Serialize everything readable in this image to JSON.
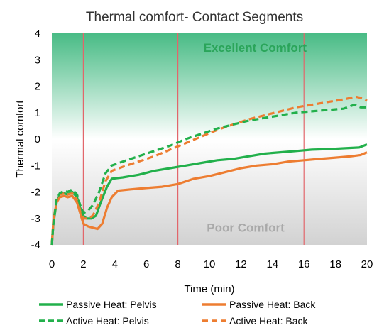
{
  "chart_data": {
    "type": "line",
    "title": "Thermal comfort- Contact Segments",
    "xlabel": "Time (min)",
    "ylabel": "Thermal comfort",
    "xlim": [
      0,
      20
    ],
    "ylim": [
      -4,
      4
    ],
    "x_ticks": [
      0,
      2,
      4,
      6,
      8,
      10,
      12,
      14,
      16,
      18,
      20
    ],
    "y_ticks": [
      -4,
      -3,
      -2,
      -1,
      0,
      1,
      2,
      3,
      4
    ],
    "vertical_reference_lines": [
      2,
      8,
      16
    ],
    "zones": {
      "excellent": {
        "label": "Excellent Comfort",
        "color": "#4fc08d"
      },
      "poor": {
        "label": "Poor Comfort",
        "color": "#cfcfcf"
      }
    },
    "legend_position": "bottom",
    "series": [
      {
        "name": "Passive Heat: Pelvis",
        "color": "#22b04b",
        "dash": "solid",
        "points": [
          [
            0,
            -4
          ],
          [
            0.1,
            -3.2
          ],
          [
            0.3,
            -2.4
          ],
          [
            0.5,
            -2.1
          ],
          [
            0.8,
            -2.05
          ],
          [
            1.0,
            -2.1
          ],
          [
            1.3,
            -2.0
          ],
          [
            1.6,
            -2.2
          ],
          [
            1.8,
            -2.6
          ],
          [
            2.0,
            -2.9
          ],
          [
            2.2,
            -3.0
          ],
          [
            2.5,
            -3.0
          ],
          [
            2.8,
            -2.9
          ],
          [
            3.1,
            -2.4
          ],
          [
            3.5,
            -1.8
          ],
          [
            3.8,
            -1.5
          ],
          [
            4.5,
            -1.45
          ],
          [
            5.5,
            -1.35
          ],
          [
            6.5,
            -1.2
          ],
          [
            7.5,
            -1.1
          ],
          [
            8.5,
            -1.0
          ],
          [
            9.5,
            -0.9
          ],
          [
            10.5,
            -0.8
          ],
          [
            11.5,
            -0.75
          ],
          [
            12.5,
            -0.65
          ],
          [
            13.5,
            -0.55
          ],
          [
            14.5,
            -0.5
          ],
          [
            15.5,
            -0.45
          ],
          [
            16.5,
            -0.4
          ],
          [
            17.5,
            -0.38
          ],
          [
            18.5,
            -0.35
          ],
          [
            19.5,
            -0.32
          ],
          [
            20,
            -0.2
          ]
        ]
      },
      {
        "name": "Passive Heat: Back",
        "color": "#ed7d31",
        "dash": "solid",
        "points": [
          [
            0,
            -4
          ],
          [
            0.1,
            -3.1
          ],
          [
            0.3,
            -2.4
          ],
          [
            0.5,
            -2.2
          ],
          [
            0.8,
            -2.15
          ],
          [
            1.0,
            -2.2
          ],
          [
            1.3,
            -2.15
          ],
          [
            1.6,
            -2.4
          ],
          [
            1.8,
            -2.8
          ],
          [
            2.0,
            -3.2
          ],
          [
            2.3,
            -3.3
          ],
          [
            2.6,
            -3.35
          ],
          [
            2.9,
            -3.4
          ],
          [
            3.2,
            -3.2
          ],
          [
            3.5,
            -2.6
          ],
          [
            3.8,
            -2.2
          ],
          [
            4.2,
            -1.95
          ],
          [
            5.0,
            -1.9
          ],
          [
            6.0,
            -1.85
          ],
          [
            7.0,
            -1.8
          ],
          [
            8.0,
            -1.7
          ],
          [
            9.0,
            -1.5
          ],
          [
            10.0,
            -1.4
          ],
          [
            11.0,
            -1.25
          ],
          [
            12.0,
            -1.1
          ],
          [
            13.0,
            -1.0
          ],
          [
            14.0,
            -0.95
          ],
          [
            15.0,
            -0.85
          ],
          [
            16.0,
            -0.8
          ],
          [
            17.0,
            -0.75
          ],
          [
            18.0,
            -0.7
          ],
          [
            19.0,
            -0.65
          ],
          [
            19.6,
            -0.6
          ],
          [
            20,
            -0.5
          ]
        ]
      },
      {
        "name": "Active Heat: Pelvis",
        "color": "#22b04b",
        "dash": "dashed",
        "points": [
          [
            0,
            -4
          ],
          [
            0.1,
            -3.2
          ],
          [
            0.3,
            -2.3
          ],
          [
            0.5,
            -2.05
          ],
          [
            0.8,
            -1.95
          ],
          [
            1.0,
            -2.0
          ],
          [
            1.3,
            -1.9
          ],
          [
            1.6,
            -2.1
          ],
          [
            1.8,
            -2.5
          ],
          [
            2.0,
            -2.8
          ],
          [
            2.3,
            -2.7
          ],
          [
            2.6,
            -2.5
          ],
          [
            3.0,
            -2.0
          ],
          [
            3.4,
            -1.3
          ],
          [
            3.8,
            -1.0
          ],
          [
            4.5,
            -0.85
          ],
          [
            5.5,
            -0.65
          ],
          [
            6.5,
            -0.45
          ],
          [
            7.5,
            -0.25
          ],
          [
            8.5,
            0.0
          ],
          [
            9.5,
            0.2
          ],
          [
            10.5,
            0.4
          ],
          [
            11.5,
            0.55
          ],
          [
            12.5,
            0.7
          ],
          [
            13.5,
            0.8
          ],
          [
            14.5,
            0.9
          ],
          [
            15.5,
            1.0
          ],
          [
            16.5,
            1.05
          ],
          [
            17.5,
            1.1
          ],
          [
            18.5,
            1.15
          ],
          [
            19.2,
            1.3
          ],
          [
            19.6,
            1.2
          ],
          [
            20,
            1.2
          ]
        ]
      },
      {
        "name": "Active Heat: Back",
        "color": "#ed7d31",
        "dash": "dashed",
        "points": [
          [
            0,
            -4
          ],
          [
            0.1,
            -3.1
          ],
          [
            0.3,
            -2.3
          ],
          [
            0.5,
            -2.1
          ],
          [
            0.8,
            -2.05
          ],
          [
            1.0,
            -2.1
          ],
          [
            1.3,
            -2.05
          ],
          [
            1.6,
            -2.3
          ],
          [
            1.8,
            -2.7
          ],
          [
            2.0,
            -3.0
          ],
          [
            2.3,
            -3.0
          ],
          [
            2.6,
            -2.9
          ],
          [
            3.0,
            -2.4
          ],
          [
            3.4,
            -1.6
          ],
          [
            3.8,
            -1.2
          ],
          [
            4.5,
            -1.05
          ],
          [
            5.5,
            -0.85
          ],
          [
            6.5,
            -0.65
          ],
          [
            7.5,
            -0.4
          ],
          [
            8.5,
            -0.15
          ],
          [
            9.5,
            0.1
          ],
          [
            10.5,
            0.35
          ],
          [
            11.5,
            0.55
          ],
          [
            12.5,
            0.75
          ],
          [
            13.5,
            0.9
          ],
          [
            14.5,
            1.05
          ],
          [
            15.5,
            1.2
          ],
          [
            16.5,
            1.3
          ],
          [
            17.5,
            1.4
          ],
          [
            18.5,
            1.5
          ],
          [
            19.3,
            1.6
          ],
          [
            19.7,
            1.55
          ],
          [
            20,
            1.45
          ]
        ]
      }
    ]
  }
}
